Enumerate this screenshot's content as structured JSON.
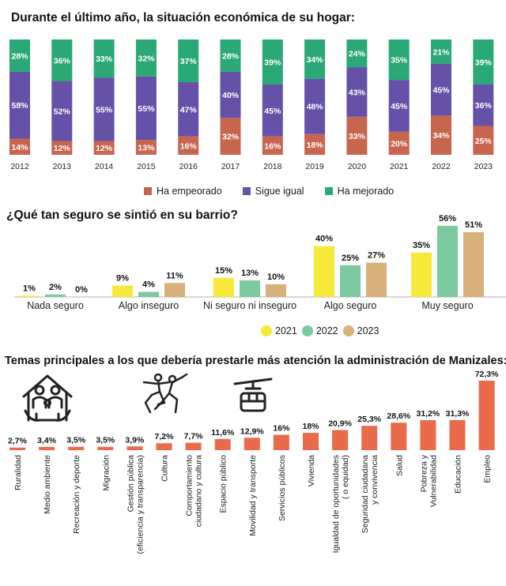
{
  "chart_data": [
    {
      "type": "bar",
      "stacked": true,
      "title": "Durante el último año, la situación económica de su hogar:",
      "categories": [
        "2012",
        "2013",
        "2014",
        "2015",
        "2016",
        "2017",
        "2018",
        "2019",
        "2020",
        "2021",
        "2022",
        "2023"
      ],
      "series": [
        {
          "name": "Ha empeorado",
          "color": "#c8654f",
          "values": [
            14,
            12,
            12,
            13,
            16,
            32,
            16,
            18,
            33,
            20,
            34,
            25
          ]
        },
        {
          "name": "Sigue igual",
          "color": "#6552a8",
          "values": [
            58,
            52,
            55,
            55,
            47,
            40,
            45,
            48,
            43,
            45,
            45,
            36
          ]
        },
        {
          "name": "Ha mejorado",
          "color": "#2aa876",
          "values": [
            28,
            36,
            33,
            32,
            37,
            28,
            39,
            34,
            24,
            35,
            21,
            39
          ]
        }
      ],
      "value_labels": {
        "Ha empeorado": [
          "14%",
          "12%",
          "12%",
          "13%",
          "16%",
          "32%",
          "16%",
          "18%",
          "33%",
          "20%",
          "34%",
          "25%"
        ],
        "Sigue igual": [
          "58%",
          "52%",
          "55%",
          "55%",
          "47%",
          "40%",
          "45%",
          "48%",
          "43%",
          "45%",
          "45%",
          "36%"
        ],
        "Ha mejorado": [
          "28%",
          "36%",
          "33%",
          "32%",
          "37%",
          "28%",
          "39%",
          "34%",
          "24%",
          "35%",
          "21%",
          "39%"
        ]
      },
      "ylim": [
        0,
        100
      ],
      "legend": "bottom"
    },
    {
      "type": "bar",
      "title": "¿Qué tan seguro se sintió en su barrio?",
      "categories": [
        "Nada seguro",
        "Algo inseguro",
        "Ni seguro ni inseguro",
        "Algo seguro",
        "Muy seguro"
      ],
      "series": [
        {
          "name": "2021",
          "color": "#f7e93a",
          "values": [
            1,
            9,
            15,
            40,
            35
          ]
        },
        {
          "name": "2022",
          "color": "#7cc9a0",
          "values": [
            2,
            4,
            13,
            25,
            56
          ]
        },
        {
          "name": "2023",
          "color": "#d8b07a",
          "values": [
            0,
            11,
            10,
            27,
            51
          ]
        }
      ],
      "value_labels": {
        "2021": [
          "1%",
          "9%",
          "15%",
          "40%",
          "35%"
        ],
        "2022": [
          "2%",
          "4%",
          "13%",
          "25%",
          "56%"
        ],
        "2023": [
          "0%",
          "11%",
          "10%",
          "27%",
          "51%"
        ]
      },
      "ylim": [
        0,
        56
      ],
      "legend": "bottom-right"
    },
    {
      "type": "bar",
      "title": "Temas principales a los que debería prestarle más atención la administración de Manizales:",
      "color": "#ea6a4c",
      "categories": [
        "Ruralidad",
        "Medio ambiente",
        "Recreación y deporte",
        "Migración",
        "Gestión pública\n(eficiencia y transparencia)",
        "Cultura",
        "Comportamiento\nciudadano y cultura",
        "Espacio público",
        "Movilidad y transporte",
        "Servicios públicos",
        "Vivienda",
        "Igualdad de oportunidades\n( o equidad)",
        "Seguridad ciudadana\ny convivencia",
        "Salud",
        "Pobreza y\nVulnerabilidad",
        "Educación",
        "Empleo"
      ],
      "values": [
        2.7,
        3.4,
        3.5,
        3.5,
        3.9,
        7.2,
        7.7,
        11.6,
        12.9,
        16,
        18,
        20.9,
        25.3,
        28.6,
        31.2,
        31.3,
        72.3
      ],
      "value_labels": [
        "2,7%",
        "3,4%",
        "3,5%",
        "3,5%",
        "3,9%",
        "7,2%",
        "7,7%",
        "11,6%",
        "12,9%",
        "16%",
        "18%",
        "20,9%",
        "25,3%",
        "28,6%",
        "31,2%",
        "31,3%",
        "72,3%"
      ],
      "ylim": [
        0,
        72.3
      ]
    }
  ],
  "icons": [
    "family-house-icon",
    "dancers-icon",
    "cable-car-icon"
  ]
}
